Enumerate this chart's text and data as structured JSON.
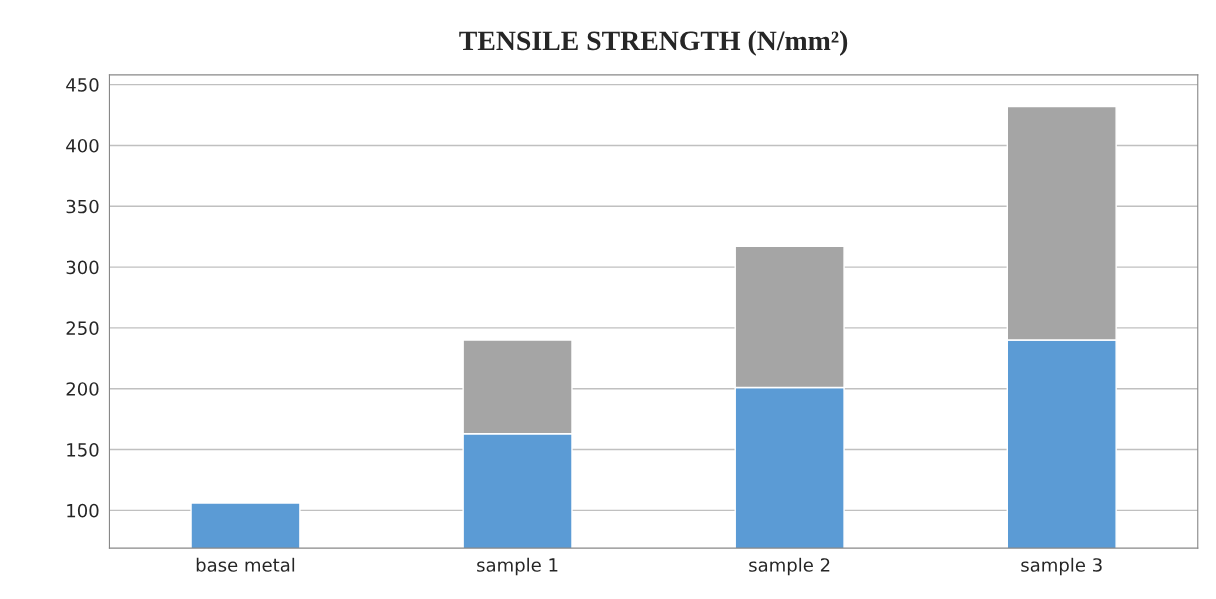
{
  "chart_data": {
    "type": "bar",
    "title": "TENSILE STRENGTH (N/mm²)",
    "categories": [
      "base metal",
      "sample 1",
      "sample 2",
      "sample 3"
    ],
    "stacked": true,
    "series": [
      {
        "color": "#5b9bd5",
        "values": [
          106,
          163,
          201,
          240
        ]
      },
      {
        "color": "#a5a5a5",
        "values": [
          null,
          77,
          116,
          192
        ]
      }
    ],
    "ylim": [
      69,
      458
    ],
    "yticks": [
      100,
      150,
      200,
      250,
      300,
      350,
      400,
      450
    ],
    "grid": "y",
    "legend": false
  }
}
